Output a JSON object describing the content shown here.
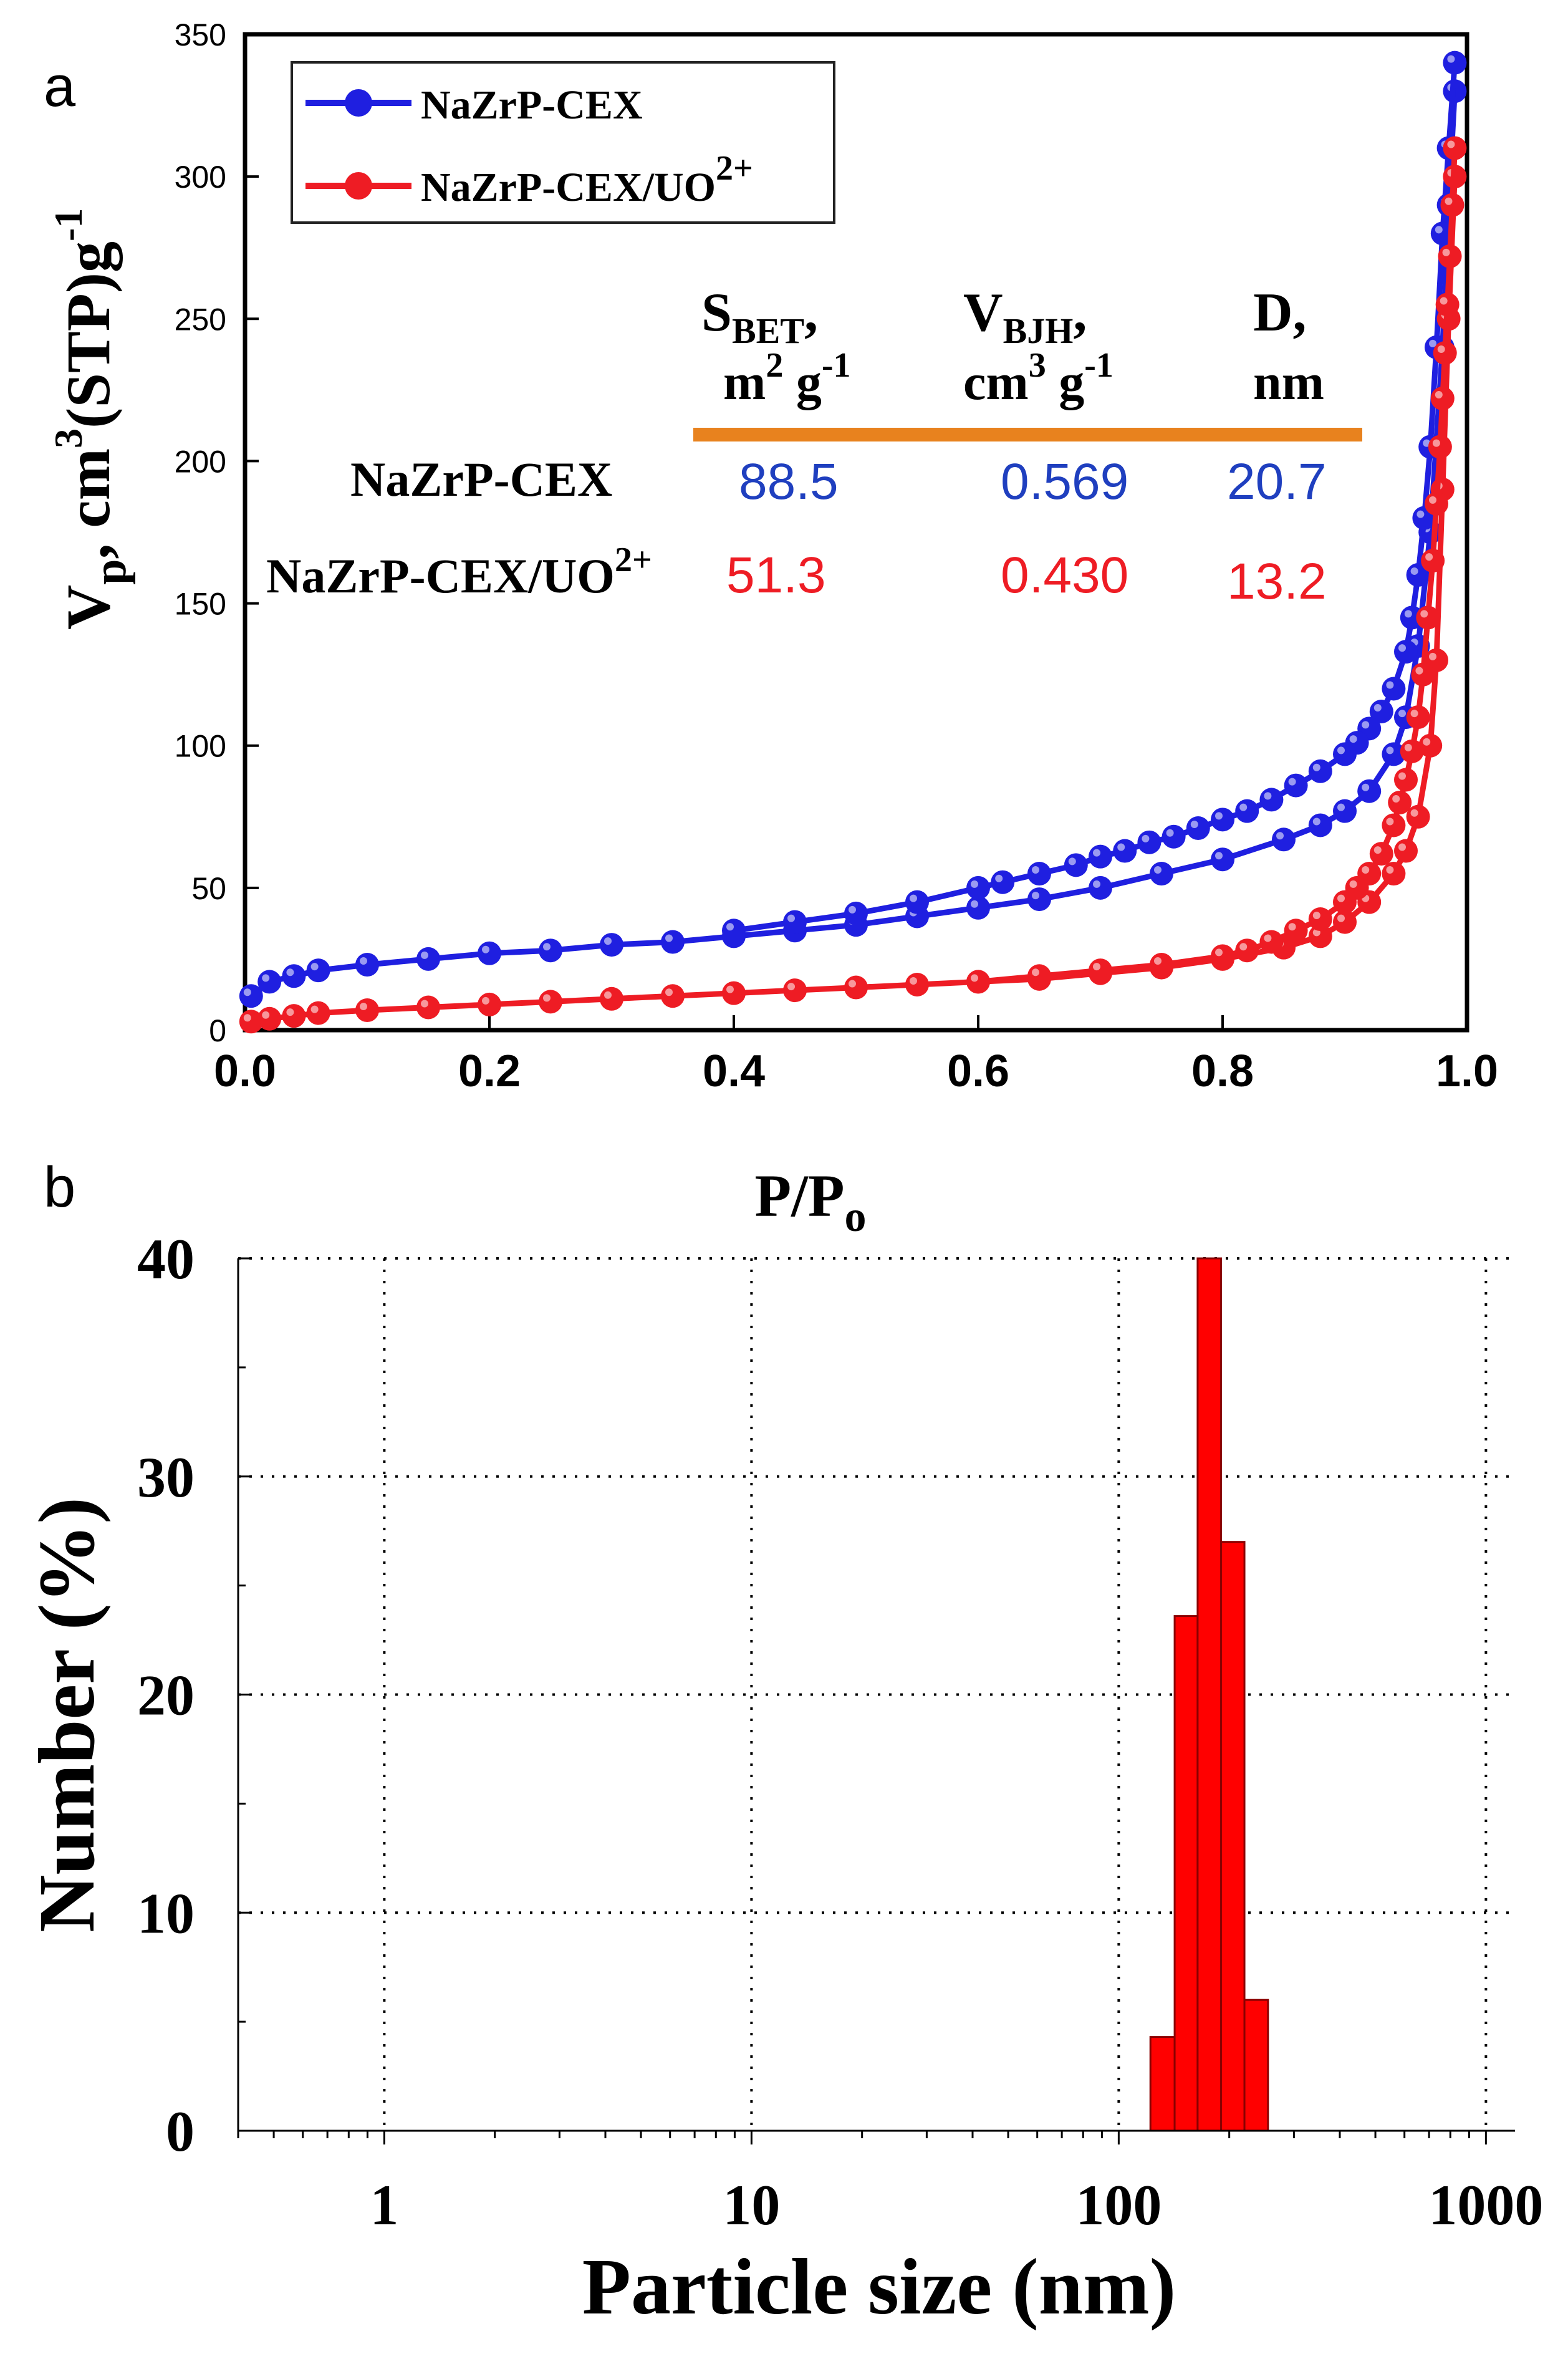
{
  "chart_data": [
    {
      "panel": "a",
      "type": "line",
      "xlabel": "P/P",
      "xlabel_sub": "o",
      "ylabel": "V",
      "ylabel_sub": "p",
      "ylabel_rest": ", cm",
      "ylabel_sup": "3",
      "ylabel_tail": "(STP)g",
      "ylabel_sup2": "-1",
      "xlim": [
        0.0,
        1.0
      ],
      "ylim": [
        0,
        350
      ],
      "xticks": [
        "0.0",
        "0.2",
        "0.4",
        "0.6",
        "0.8",
        "1.0"
      ],
      "xtick_values": [
        0.0,
        0.2,
        0.4,
        0.6,
        0.8,
        1.0
      ],
      "yticks": [
        "0",
        "50",
        "100",
        "150",
        "200",
        "250",
        "300",
        "350"
      ],
      "ytick_values": [
        0,
        50,
        100,
        150,
        200,
        250,
        300,
        350
      ],
      "legend": [
        {
          "label": "NaZrP-CEX",
          "sup": "",
          "color": "#1f1fe0"
        },
        {
          "label": "NaZrP-CEX/UO",
          "sup": "2+",
          "color": "#ee1c24"
        }
      ],
      "series": [
        {
          "name": "NaZrP-CEX adsorption",
          "color": "#1f1fe0",
          "x": [
            0.005,
            0.02,
            0.04,
            0.06,
            0.1,
            0.15,
            0.2,
            0.25,
            0.3,
            0.35,
            0.4,
            0.45,
            0.5,
            0.55,
            0.6,
            0.65,
            0.7,
            0.75,
            0.8,
            0.85,
            0.88,
            0.9,
            0.92,
            0.94,
            0.95,
            0.96,
            0.97,
            0.98,
            0.985,
            0.99
          ],
          "y": [
            12,
            17,
            19,
            21,
            23,
            25,
            27,
            28,
            30,
            31,
            33,
            35,
            37,
            40,
            43,
            46,
            50,
            55,
            60,
            67,
            72,
            77,
            84,
            97,
            110,
            135,
            175,
            240,
            290,
            330
          ]
        },
        {
          "name": "NaZrP-CEX desorption",
          "color": "#1f1fe0",
          "x": [
            0.99,
            0.985,
            0.98,
            0.975,
            0.97,
            0.965,
            0.96,
            0.955,
            0.95,
            0.94,
            0.93,
            0.92,
            0.91,
            0.9,
            0.88,
            0.86,
            0.84,
            0.82,
            0.8,
            0.78,
            0.76,
            0.74,
            0.72,
            0.7,
            0.68,
            0.65,
            0.62,
            0.6,
            0.55,
            0.5,
            0.45,
            0.4
          ],
          "y": [
            340,
            310,
            280,
            240,
            205,
            180,
            160,
            145,
            133,
            120,
            112,
            106,
            101,
            97,
            91,
            86,
            81,
            77,
            74,
            71,
            68,
            66,
            63,
            61,
            58,
            55,
            52,
            50,
            45,
            41,
            38,
            35
          ]
        },
        {
          "name": "NaZrP-CEX/UO2+ adsorption",
          "color": "#ee1c24",
          "x": [
            0.005,
            0.02,
            0.04,
            0.06,
            0.1,
            0.15,
            0.2,
            0.25,
            0.3,
            0.35,
            0.4,
            0.45,
            0.5,
            0.55,
            0.6,
            0.65,
            0.7,
            0.75,
            0.8,
            0.85,
            0.88,
            0.9,
            0.92,
            0.94,
            0.95,
            0.96,
            0.97,
            0.975,
            0.98,
            0.985,
            0.99
          ],
          "y": [
            3,
            4,
            5,
            6,
            7,
            8,
            9,
            10,
            11,
            12,
            13,
            14,
            15,
            16,
            17,
            18,
            20,
            22,
            25,
            29,
            33,
            38,
            45,
            55,
            63,
            75,
            100,
            130,
            190,
            250,
            300
          ]
        },
        {
          "name": "NaZrP-CEX/UO2+ desorption",
          "color": "#ee1c24",
          "x": [
            0.99,
            0.988,
            0.986,
            0.984,
            0.982,
            0.98,
            0.978,
            0.975,
            0.972,
            0.968,
            0.964,
            0.96,
            0.955,
            0.95,
            0.945,
            0.94,
            0.93,
            0.92,
            0.91,
            0.9,
            0.88,
            0.86,
            0.84,
            0.82,
            0.8,
            0.75,
            0.7,
            0.65,
            0.6
          ],
          "y": [
            310,
            290,
            272,
            255,
            238,
            222,
            205,
            185,
            165,
            145,
            125,
            110,
            98,
            88,
            80,
            72,
            62,
            55,
            50,
            45,
            39,
            35,
            31,
            28,
            26,
            23,
            21,
            19,
            17
          ]
        }
      ],
      "inset_table": {
        "columns": [
          {
            "main": "S",
            "sub": "BET",
            "comma": ",",
            "unit": "m",
            "unit_sup": "2",
            "unit2": " g",
            "unit2_sup": "-1"
          },
          {
            "main": "V",
            "sub": "BJH",
            "comma": ",",
            "unit": "cm",
            "unit_sup": "3",
            "unit2": " g",
            "unit2_sup": "-1"
          },
          {
            "main": "D,",
            "sub": "",
            "comma": "",
            "unit": "nm",
            "unit_sup": "",
            "unit2": "",
            "unit2_sup": ""
          }
        ],
        "rows": [
          {
            "label": "NaZrP-CEX",
            "label_sup": "",
            "color": "#1f3fbf",
            "values": [
              "88.5",
              "0.569",
              "20.7"
            ]
          },
          {
            "label": "NaZrP-CEX/UO",
            "label_sup": "2+",
            "color": "#ee1c24",
            "values": [
              "51.3",
              "0.430",
              "13.2"
            ]
          }
        ],
        "rule_color": "#e8821e"
      }
    },
    {
      "panel": "b",
      "type": "bar",
      "xscale": "log",
      "xlabel": "Particle size (nm)",
      "ylabel": "Number (%)",
      "xlim": [
        0.4,
        1200
      ],
      "ylim": [
        0,
        40
      ],
      "xticks": [
        "1",
        "10",
        "100",
        "1000"
      ],
      "xtick_values": [
        1,
        10,
        100,
        1000
      ],
      "yticks": [
        "0",
        "10",
        "20",
        "30",
        "40"
      ],
      "ytick_values": [
        0,
        10,
        20,
        30,
        40
      ],
      "grid": "dotted",
      "color": "#ff0000",
      "bins": [
        {
          "from": 122,
          "to": 142,
          "value": 4.3
        },
        {
          "from": 142,
          "to": 164,
          "value": 23.6
        },
        {
          "from": 164,
          "to": 190,
          "value": 40.0
        },
        {
          "from": 190,
          "to": 220,
          "value": 27.0
        },
        {
          "from": 220,
          "to": 255,
          "value": 6.0
        }
      ]
    }
  ],
  "panel_labels": {
    "a": "a",
    "b": "b"
  }
}
